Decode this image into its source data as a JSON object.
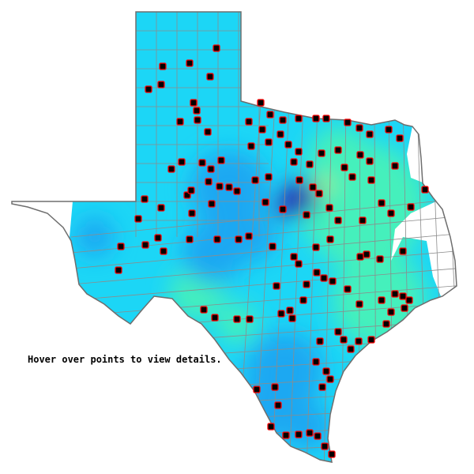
{
  "map": {
    "hint_text": "Hover over points to view details.",
    "colors": {
      "base": "#1cd6f6",
      "low": "#1aa8f2",
      "deep": "#2a20b0",
      "high": "#44f0bc",
      "peak": "#c8f040",
      "county_lines": "#8c8c8c",
      "outline": "#6e6e6e",
      "point_fill": "#000000",
      "point_outline": "#ff0000"
    },
    "point_marker": "square-point-icon"
  }
}
